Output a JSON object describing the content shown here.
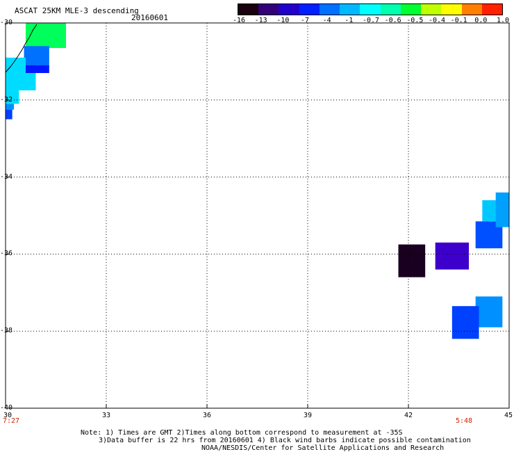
{
  "header": {
    "title": "ASCAT 25KM MLE-3 descending",
    "date": "20160601"
  },
  "colorbar": {
    "labels": [
      "-16",
      "-13",
      "-10",
      "-7",
      "-4",
      "-1",
      "-0.7",
      "-0.6",
      "-0.5",
      "-0.4",
      "-0.1",
      "0.0",
      "1.0"
    ],
    "colors": [
      "#1a0010",
      "#33007a",
      "#2200cc",
      "#0020ff",
      "#0070ff",
      "#00b8ff",
      "#00ffff",
      "#00ffb0",
      "#00ff30",
      "#c0ff00",
      "#ffff00",
      "#ff8000",
      "#ff2000"
    ]
  },
  "map": {
    "lat_labels": [
      "-30",
      "-32",
      "-34",
      "-36",
      "-38",
      "-40"
    ],
    "lon_labels": [
      "30",
      "33",
      "36",
      "39",
      "42",
      "45"
    ],
    "lat_range": [
      -40,
      -30
    ],
    "lon_range": [
      30,
      45
    ],
    "cells": [
      {
        "lon": 30.6,
        "lat": -30.0,
        "lon2": 31.8,
        "lat2": -30.65,
        "color": "#00ff5a"
      },
      {
        "lon": 30.55,
        "lat": -30.6,
        "lon2": 31.3,
        "lat2": -31.15,
        "color": "#0070ff"
      },
      {
        "lon": 30.55,
        "lat": -31.1,
        "lon2": 31.3,
        "lat2": -31.3,
        "color": "#0018ff"
      },
      {
        "lon": 30.0,
        "lat": -30.9,
        "lon2": 30.6,
        "lat2": -31.75,
        "color": "#00dcff"
      },
      {
        "lon": 30.6,
        "lat": -31.3,
        "lon2": 30.9,
        "lat2": -31.75,
        "color": "#00dcff"
      },
      {
        "lon": 30.0,
        "lat": -31.75,
        "lon2": 30.4,
        "lat2": -32.1,
        "color": "#00dcff"
      },
      {
        "lon": 30.0,
        "lat": -32.1,
        "lon2": 30.25,
        "lat2": -32.25,
        "color": "#0090ff"
      },
      {
        "lon": 30.0,
        "lat": -32.25,
        "lon2": 30.2,
        "lat2": -32.5,
        "color": "#0040ff"
      },
      {
        "lon": 41.7,
        "lat": -35.75,
        "lon2": 42.5,
        "lat2": -36.6,
        "color": "#1a0020"
      },
      {
        "lon": 42.8,
        "lat": -35.7,
        "lon2": 43.8,
        "lat2": -36.4,
        "color": "#3d00cc"
      },
      {
        "lon": 44.0,
        "lat": -35.15,
        "lon2": 44.8,
        "lat2": -35.85,
        "color": "#0050ff"
      },
      {
        "lon": 44.2,
        "lat": -34.6,
        "lon2": 45.0,
        "lat2": -35.15,
        "color": "#00c8ff"
      },
      {
        "lon": 44.6,
        "lat": -34.4,
        "lon2": 45.0,
        "lat2": -35.3,
        "color": "#00a0ff"
      },
      {
        "lon": 44.0,
        "lat": -37.1,
        "lon2": 44.8,
        "lat2": -37.9,
        "color": "#0090ff"
      },
      {
        "lon": 43.3,
        "lat": -37.35,
        "lon2": 44.1,
        "lat2": -38.2,
        "color": "#0040ff"
      }
    ]
  },
  "footer": {
    "time_left": "7:27",
    "time_right": "5:48",
    "note1": "Note: 1) Times are GMT 2)Times along bottom correspond to measurement at -35S",
    "note2": "3)Data buffer is 22 hrs from 20160601 4) Black wind barbs indicate possible contamination",
    "note3": "NOAA/NESDIS/Center for Satellite Applications and Research"
  }
}
